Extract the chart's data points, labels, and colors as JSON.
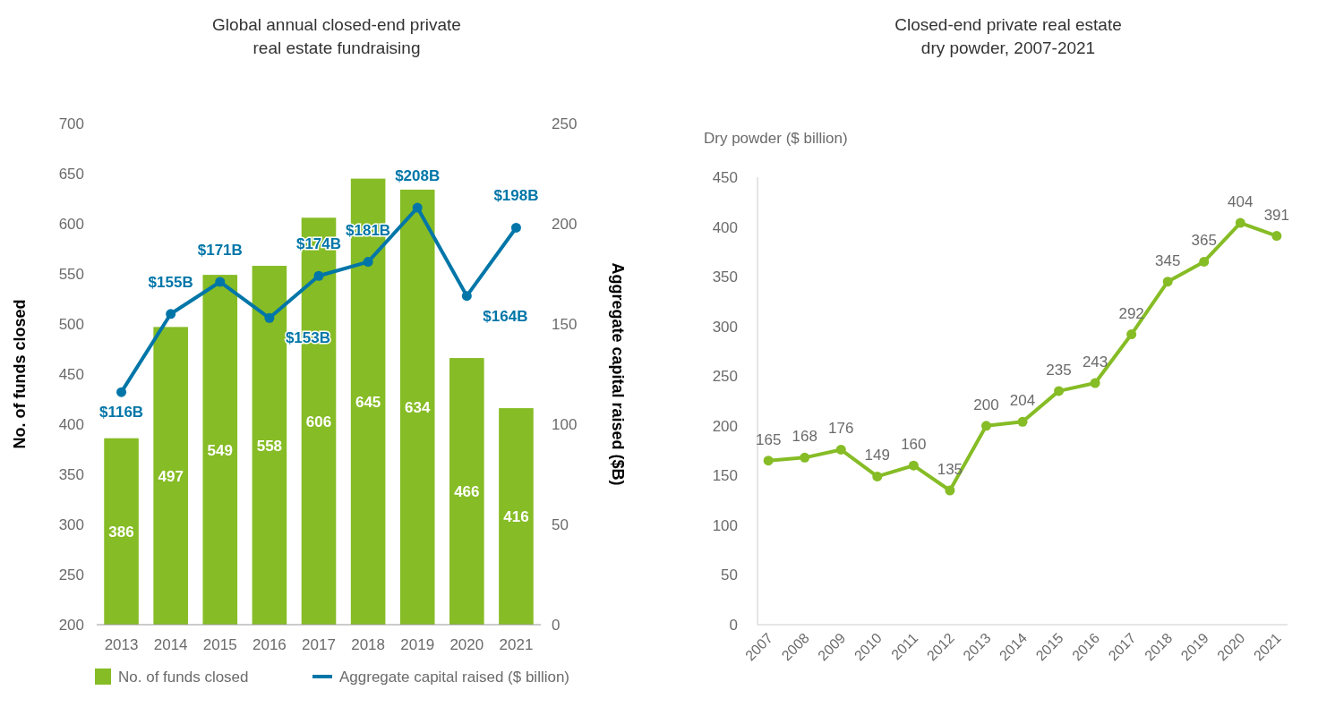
{
  "chart_data": [
    {
      "type": "bar",
      "title": "Global annual closed-end private\nreal estate fundraising",
      "categories": [
        "2013",
        "2014",
        "2015",
        "2016",
        "2017",
        "2018",
        "2019",
        "2020",
        "2021"
      ],
      "ylabel": "No. of funds closed",
      "y2label": "Aggregate capital raised ($B)",
      "ylim": [
        200,
        700
      ],
      "yticks": [
        200,
        250,
        300,
        350,
        400,
        450,
        500,
        550,
        600,
        650,
        700
      ],
      "y2lim": [
        0,
        250
      ],
      "y2ticks": [
        0,
        50,
        100,
        150,
        200,
        250
      ],
      "legend": "bottom",
      "marker": "circle",
      "series": [
        {
          "name": "No. of funds closed",
          "type": "bar",
          "color": "#86bc25",
          "values": [
            386,
            497,
            549,
            558,
            606,
            645,
            634,
            466,
            416
          ],
          "value_labels": [
            "386",
            "497",
            "549",
            "558",
            "606",
            "645",
            "634",
            "466",
            "416"
          ]
        },
        {
          "name": "Aggregate capital raised ($ billion)",
          "type": "line",
          "axis": "y2",
          "color": "#0076a8",
          "values": [
            116,
            155,
            171,
            153,
            174,
            181,
            208,
            164,
            198
          ],
          "value_labels": [
            "$116B",
            "$155B",
            "$171B",
            "$153B",
            "$174B",
            "$181B",
            "$208B",
            "$164B",
            "$198B"
          ]
        }
      ]
    },
    {
      "type": "line",
      "title": "Closed-end private real estate\ndry powder, 2007-2021",
      "ylabel": "Dry powder ($ billion)",
      "categories": [
        "2007",
        "2008",
        "2009",
        "2010",
        "2011",
        "2012",
        "2013",
        "2014",
        "2015",
        "2016",
        "2017",
        "2018",
        "2019",
        "2020",
        "2021"
      ],
      "ylim": [
        0,
        450
      ],
      "yticks": [
        0,
        50,
        100,
        150,
        200,
        250,
        300,
        350,
        400,
        450
      ],
      "marker": "circle",
      "data_labels": true,
      "series": [
        {
          "color": "#86bc25",
          "values": [
            165,
            168,
            176,
            149,
            160,
            135,
            200,
            204,
            235,
            243,
            292,
            345,
            365,
            404,
            391
          ]
        }
      ]
    }
  ]
}
